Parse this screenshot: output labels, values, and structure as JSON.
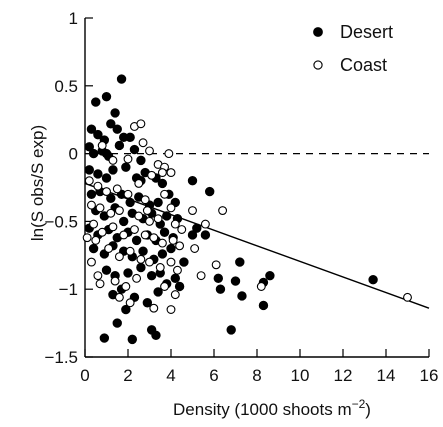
{
  "chart_data": {
    "type": "scatter",
    "xlabel": "Density (1000 shoots m",
    "xlabel_sup": "−2",
    "xlabel_close": ")",
    "ylabel": "ln(S obs/S exp)",
    "xlim": [
      0,
      16
    ],
    "ylim": [
      -1.5,
      1
    ],
    "x_ticks": [
      0,
      2,
      4,
      6,
      8,
      10,
      12,
      14,
      16
    ],
    "y_ticks": [
      1,
      0.5,
      0,
      -0.5,
      -1,
      -1.5
    ],
    "y_tick_labels": [
      "1",
      "0.5",
      "0",
      "−0.5",
      "−1",
      "−1.5"
    ],
    "legend_position": "top-right",
    "reference_line": {
      "y": 0,
      "style": "dashed"
    },
    "fit_line": {
      "x": [
        0,
        16
      ],
      "y": [
        -0.22,
        -1.14
      ]
    },
    "series": [
      {
        "name": "Desert",
        "marker": "filled-circle",
        "color": "#000000",
        "points": [
          [
            1.7,
            0.55
          ],
          [
            0.5,
            0.38
          ],
          [
            1.0,
            0.42
          ],
          [
            1.4,
            0.3
          ],
          [
            1.2,
            0.22
          ],
          [
            0.6,
            0.14
          ],
          [
            0.9,
            0.1
          ],
          [
            0.3,
            0.18
          ],
          [
            1.8,
            0.12
          ],
          [
            1.6,
            0.06
          ],
          [
            2.1,
            0.12
          ],
          [
            1.5,
            0.18
          ],
          [
            0.2,
            0.05
          ],
          [
            0.8,
            0.02
          ],
          [
            1.1,
            -0.02
          ],
          [
            0.4,
            0.0
          ],
          [
            2.3,
            0.03
          ],
          [
            2.6,
            -0.05
          ],
          [
            0.2,
            -0.12
          ],
          [
            0.6,
            -0.15
          ],
          [
            1.0,
            -0.18
          ],
          [
            1.3,
            -0.12
          ],
          [
            1.9,
            -0.1
          ],
          [
            2.4,
            -0.18
          ],
          [
            2.8,
            -0.14
          ],
          [
            3.3,
            -0.18
          ],
          [
            3.6,
            -0.22
          ],
          [
            0.3,
            -0.3
          ],
          [
            0.7,
            -0.28
          ],
          [
            1.2,
            -0.33
          ],
          [
            1.7,
            -0.3
          ],
          [
            2.1,
            -0.36
          ],
          [
            2.5,
            -0.32
          ],
          [
            3.0,
            -0.38
          ],
          [
            3.4,
            -0.36
          ],
          [
            3.9,
            -0.3
          ],
          [
            4.2,
            -0.36
          ],
          [
            0.5,
            -0.42
          ],
          [
            0.9,
            -0.46
          ],
          [
            1.4,
            -0.4
          ],
          [
            1.8,
            -0.5
          ],
          [
            2.2,
            -0.44
          ],
          [
            2.7,
            -0.48
          ],
          [
            3.1,
            -0.44
          ],
          [
            3.5,
            -0.52
          ],
          [
            3.8,
            -0.46
          ],
          [
            4.3,
            -0.48
          ],
          [
            0.2,
            -0.55
          ],
          [
            0.6,
            -0.6
          ],
          [
            1.1,
            -0.56
          ],
          [
            1.5,
            -0.62
          ],
          [
            2.0,
            -0.58
          ],
          [
            2.4,
            -0.64
          ],
          [
            2.9,
            -0.6
          ],
          [
            3.3,
            -0.64
          ],
          [
            3.7,
            -0.58
          ],
          [
            4.1,
            -0.62
          ],
          [
            0.4,
            -0.7
          ],
          [
            0.9,
            -0.74
          ],
          [
            1.3,
            -0.68
          ],
          [
            1.8,
            -0.72
          ],
          [
            2.2,
            -0.76
          ],
          [
            2.7,
            -0.72
          ],
          [
            3.2,
            -0.78
          ],
          [
            3.6,
            -0.74
          ],
          [
            4.0,
            -0.7
          ],
          [
            1.0,
            -0.86
          ],
          [
            1.4,
            -0.9
          ],
          [
            2.0,
            -0.88
          ],
          [
            2.6,
            -0.84
          ],
          [
            3.1,
            -0.9
          ],
          [
            3.5,
            -0.88
          ],
          [
            4.2,
            -0.92
          ],
          [
            1.7,
            -1.0
          ],
          [
            2.3,
            -1.06
          ],
          [
            3.4,
            -1.02
          ],
          [
            4.4,
            -0.98
          ],
          [
            1.3,
            -1.04
          ],
          [
            2.9,
            -1.1
          ],
          [
            1.9,
            -1.15
          ],
          [
            3.8,
            -0.96
          ],
          [
            4.6,
            -0.8
          ],
          [
            5.2,
            -0.55
          ],
          [
            5.6,
            -0.6
          ],
          [
            5.8,
            -0.28
          ],
          [
            5.0,
            -0.2
          ],
          [
            5.0,
            -0.6
          ],
          [
            6.2,
            -0.92
          ],
          [
            6.3,
            -1.0
          ],
          [
            7.0,
            -0.94
          ],
          [
            7.2,
            -0.8
          ],
          [
            6.8,
            -1.3
          ],
          [
            7.3,
            -1.05
          ],
          [
            8.3,
            -0.95
          ],
          [
            8.6,
            -0.9
          ],
          [
            8.3,
            -1.12
          ],
          [
            1.5,
            -1.25
          ],
          [
            3.1,
            -1.3
          ],
          [
            3.3,
            -1.34
          ],
          [
            2.2,
            -1.37
          ],
          [
            0.9,
            -1.36
          ],
          [
            13.4,
            -0.93
          ],
          [
            2.6,
            -0.2
          ],
          [
            1.0,
            0.0
          ]
        ]
      },
      {
        "name": "Coast",
        "marker": "open-circle",
        "color": "#000000",
        "points": [
          [
            3.9,
            0.0
          ],
          [
            2.7,
            0.08
          ],
          [
            3.0,
            0.02
          ],
          [
            3.4,
            -0.08
          ],
          [
            3.7,
            -0.1
          ],
          [
            3.6,
            -0.14
          ],
          [
            4.0,
            -0.14
          ],
          [
            3.1,
            -0.16
          ],
          [
            2.5,
            -0.22
          ],
          [
            0.2,
            -0.2
          ],
          [
            0.6,
            -0.24
          ],
          [
            1.0,
            -0.28
          ],
          [
            1.5,
            -0.26
          ],
          [
            2.0,
            -0.3
          ],
          [
            3.7,
            -0.3
          ],
          [
            4.0,
            -0.4
          ],
          [
            2.8,
            -0.34
          ],
          [
            0.3,
            -0.38
          ],
          [
            0.7,
            -0.4
          ],
          [
            1.2,
            -0.44
          ],
          [
            1.6,
            -0.42
          ],
          [
            2.5,
            -0.46
          ],
          [
            3.0,
            -0.5
          ],
          [
            3.4,
            -0.48
          ],
          [
            4.2,
            -0.52
          ],
          [
            4.5,
            -0.56
          ],
          [
            0.4,
            -0.52
          ],
          [
            0.8,
            -0.58
          ],
          [
            1.3,
            -0.54
          ],
          [
            1.8,
            -0.6
          ],
          [
            2.3,
            -0.56
          ],
          [
            2.8,
            -0.6
          ],
          [
            3.2,
            -0.62
          ],
          [
            3.6,
            -0.66
          ],
          [
            4.1,
            -0.64
          ],
          [
            4.4,
            -0.68
          ],
          [
            0.1,
            -0.62
          ],
          [
            0.5,
            -0.64
          ],
          [
            1.1,
            -0.7
          ],
          [
            1.6,
            -0.76
          ],
          [
            2.1,
            -0.72
          ],
          [
            2.6,
            -0.78
          ],
          [
            3.0,
            -0.8
          ],
          [
            3.5,
            -0.84
          ],
          [
            4.0,
            -0.8
          ],
          [
            4.3,
            -0.86
          ],
          [
            0.3,
            -0.8
          ],
          [
            0.6,
            -0.9
          ],
          [
            1.4,
            -0.94
          ],
          [
            1.9,
            -0.98
          ],
          [
            2.4,
            -0.92
          ],
          [
            3.7,
            -0.98
          ],
          [
            4.2,
            -1.04
          ],
          [
            1.6,
            -1.06
          ],
          [
            2.1,
            -1.1
          ],
          [
            3.2,
            -1.14
          ],
          [
            4.0,
            -1.15
          ],
          [
            0.7,
            -0.96
          ],
          [
            5.0,
            -0.42
          ],
          [
            5.6,
            -0.52
          ],
          [
            6.4,
            -0.42
          ],
          [
            5.1,
            -0.7
          ],
          [
            6.1,
            -0.82
          ],
          [
            5.4,
            -0.9
          ],
          [
            8.2,
            -0.98
          ],
          [
            15.0,
            -1.06
          ],
          [
            2.3,
            0.2
          ],
          [
            2.6,
            0.22
          ],
          [
            0.8,
            0.06
          ],
          [
            1.3,
            -0.05
          ],
          [
            2.0,
            -0.04
          ],
          [
            2.9,
            -0.42
          ]
        ]
      }
    ]
  }
}
